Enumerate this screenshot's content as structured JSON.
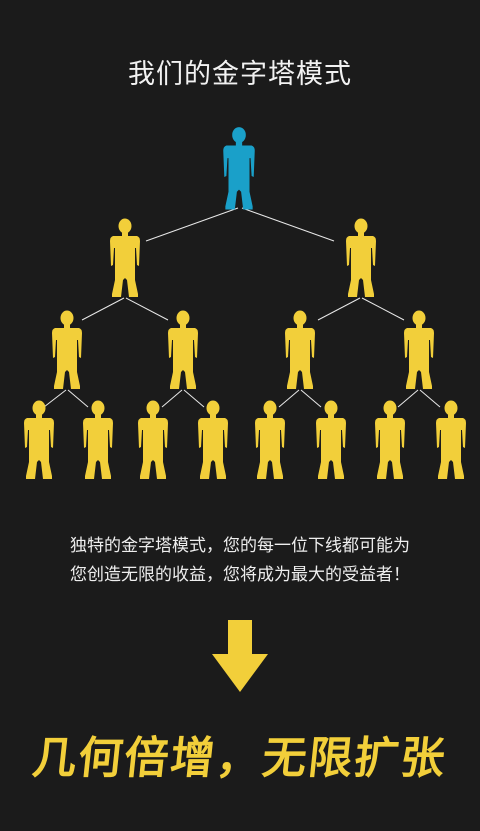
{
  "title": "我们的金字塔模式",
  "description": {
    "line1": "独特的金字塔模式，您的每一位下线都可能为",
    "line2": "您创造无限的收益，您将成为最大的受益者！"
  },
  "slogan": "几何倍增，无限扩张",
  "colors": {
    "background": "#1b1b1b",
    "top_person": "#1aa0c9",
    "person": "#f2cf3a",
    "connector": "#e8e8e8",
    "arrow": "#f2cf3a",
    "slogan": "#f2cf3a"
  },
  "icons": {
    "person": "person-silhouette-icon",
    "arrow": "arrow-down-icon"
  }
}
